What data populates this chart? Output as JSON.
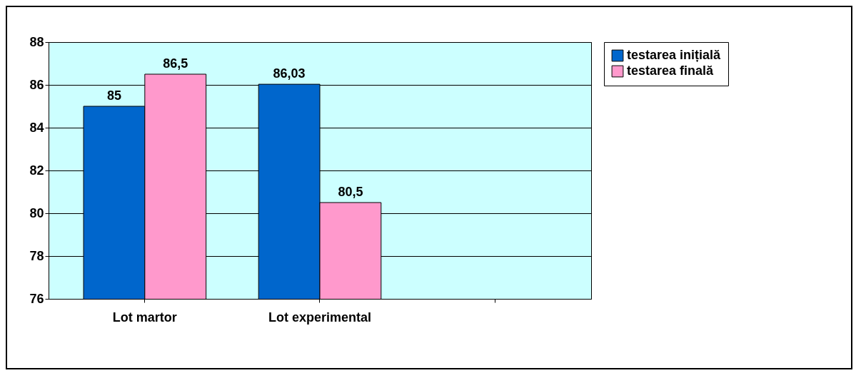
{
  "chart_data": {
    "type": "bar",
    "categories": [
      "Lot martor",
      "Lot experimental",
      null
    ],
    "series": [
      {
        "name": "testarea inițială",
        "color": "#0066cc",
        "values": [
          85,
          86.03,
          null
        ],
        "value_labels": [
          "85",
          "86,03",
          null
        ]
      },
      {
        "name": "testarea finală",
        "color": "#ff99cc",
        "values": [
          86.5,
          80.5,
          null
        ],
        "value_labels": [
          "86,5",
          "80,5",
          null
        ]
      }
    ],
    "ylim": [
      76,
      88
    ],
    "yticks": [
      76,
      78,
      80,
      82,
      84,
      86,
      88
    ],
    "grid": "y",
    "legend": "right"
  }
}
